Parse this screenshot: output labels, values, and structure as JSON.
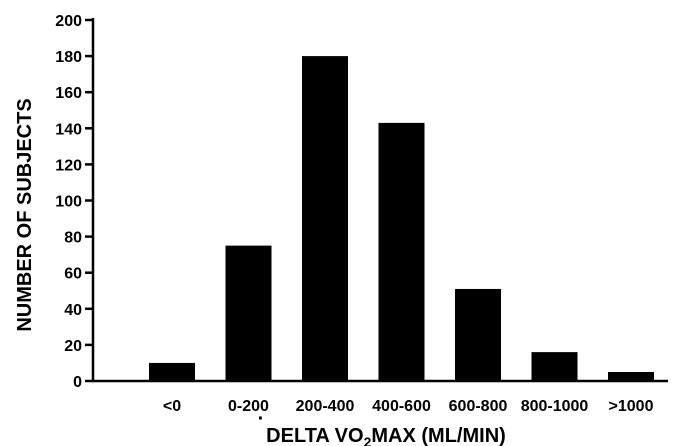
{
  "chart_data": {
    "type": "bar",
    "title": "",
    "xlabel": {
      "prefix": "DELTA V",
      "main": "O",
      "subscript": "2",
      "suffix": "MAX (ML/MIN)"
    },
    "ylabel": "NUMBER OF SUBJECTS",
    "categories": [
      "<0",
      "0-200",
      "200-400",
      "400-600",
      "600-800",
      "800-1000",
      ">1000"
    ],
    "values": [
      10,
      75,
      180,
      143,
      51,
      16,
      5
    ],
    "ylim": [
      0,
      200
    ],
    "yticks": [
      0,
      20,
      40,
      60,
      80,
      100,
      120,
      140,
      160,
      180,
      200
    ],
    "grid": false,
    "bar_color": "#000000"
  }
}
